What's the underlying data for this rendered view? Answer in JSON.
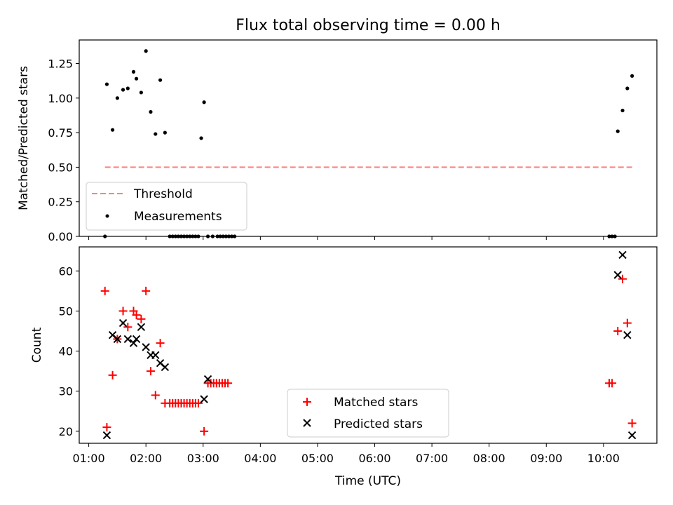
{
  "title": "Flux total observing time = 0.00 h",
  "chart_data": [
    {
      "type": "scatter",
      "ylabel": "Matched/Predicted stars",
      "xlabel": "",
      "ylim": [
        0,
        1.42
      ],
      "yticks": [
        0,
        0.25,
        0.5,
        0.75,
        1.0,
        1.25
      ],
      "ytick_labels": [
        "0.00",
        "0.25",
        "0.50",
        "0.75",
        "1.00",
        "1.25"
      ],
      "threshold": {
        "name": "Threshold",
        "y": 0.5,
        "x_start": "01:17",
        "x_end": "10:30",
        "color": "#ff8080",
        "style": "dashed"
      },
      "series": [
        {
          "name": "Measurements",
          "color": "#000000",
          "marker": "dot",
          "x": [
            "01:17",
            "01:19",
            "01:25",
            "01:30",
            "01:36",
            "01:41",
            "01:47",
            "01:50",
            "01:55",
            "02:00",
            "02:05",
            "02:10",
            "02:15",
            "02:20",
            "02:25",
            "02:28",
            "02:31",
            "02:34",
            "02:37",
            "02:40",
            "02:43",
            "02:46",
            "02:49",
            "02:52",
            "02:55",
            "02:58",
            "03:01",
            "03:05",
            "03:10",
            "03:15",
            "03:18",
            "03:21",
            "03:24",
            "03:27",
            "03:30",
            "03:33",
            "10:06",
            "10:09",
            "10:12",
            "10:15",
            "10:20",
            "10:25",
            "10:30"
          ],
          "y": [
            0.0,
            1.1,
            0.77,
            1.0,
            1.06,
            1.07,
            1.19,
            1.14,
            1.04,
            1.34,
            0.9,
            0.74,
            1.13,
            0.75,
            0.0,
            0.0,
            0.0,
            0.0,
            0.0,
            0.0,
            0.0,
            0.0,
            0.0,
            0.0,
            0.0,
            0.71,
            0.97,
            0.0,
            0.0,
            0.0,
            0.0,
            0.0,
            0.0,
            0.0,
            0.0,
            0.0,
            0.0,
            0.0,
            0.0,
            0.76,
            0.91,
            1.07,
            1.16
          ]
        }
      ],
      "legend": {
        "position": "lower-left",
        "entries": [
          "Threshold",
          "Measurements"
        ]
      }
    },
    {
      "type": "scatter",
      "ylabel": "Count",
      "xlabel": "Time (UTC)",
      "ylim": [
        17,
        66
      ],
      "yticks": [
        20,
        30,
        40,
        50,
        60
      ],
      "ytick_labels": [
        "20",
        "30",
        "40",
        "50",
        "60"
      ],
      "xlim": [
        "00:50",
        "10:56"
      ],
      "xticks": [
        "01:00",
        "02:00",
        "03:00",
        "04:00",
        "05:00",
        "06:00",
        "07:00",
        "08:00",
        "09:00",
        "10:00"
      ],
      "series": [
        {
          "name": "Matched stars",
          "color": "#ff0000",
          "marker": "plus",
          "x": [
            "01:17",
            "01:19",
            "01:25",
            "01:30",
            "01:36",
            "01:41",
            "01:47",
            "01:50",
            "01:55",
            "02:00",
            "02:05",
            "02:10",
            "02:15",
            "02:20",
            "02:25",
            "02:28",
            "02:31",
            "02:34",
            "02:37",
            "02:40",
            "02:43",
            "02:46",
            "02:49",
            "02:52",
            "02:55",
            "03:01",
            "03:05",
            "03:08",
            "03:11",
            "03:14",
            "03:17",
            "03:20",
            "03:23",
            "03:26",
            "10:06",
            "10:09",
            "10:15",
            "10:20",
            "10:25",
            "10:30"
          ],
          "y": [
            55,
            21,
            34,
            43,
            50,
            46,
            50,
            49,
            48,
            55,
            35,
            29,
            42,
            27,
            27,
            27,
            27,
            27,
            27,
            27,
            27,
            27,
            27,
            27,
            27,
            20,
            32,
            32,
            32,
            32,
            32,
            32,
            32,
            32,
            32,
            32,
            45,
            58,
            47,
            22
          ]
        },
        {
          "name": "Predicted stars",
          "color": "#000000",
          "marker": "x",
          "x": [
            "01:19",
            "01:25",
            "01:30",
            "01:36",
            "01:41",
            "01:47",
            "01:50",
            "01:55",
            "02:00",
            "02:05",
            "02:10",
            "02:15",
            "02:20",
            "03:01",
            "03:05",
            "10:15",
            "10:20",
            "10:25",
            "10:30"
          ],
          "y": [
            19,
            44,
            43,
            47,
            43,
            42,
            43,
            46,
            41,
            39,
            39,
            37,
            36,
            28,
            33,
            59,
            64,
            44,
            19
          ]
        }
      ],
      "legend": {
        "position": "lower-center",
        "entries": [
          "Matched stars",
          "Predicted stars"
        ]
      }
    }
  ]
}
